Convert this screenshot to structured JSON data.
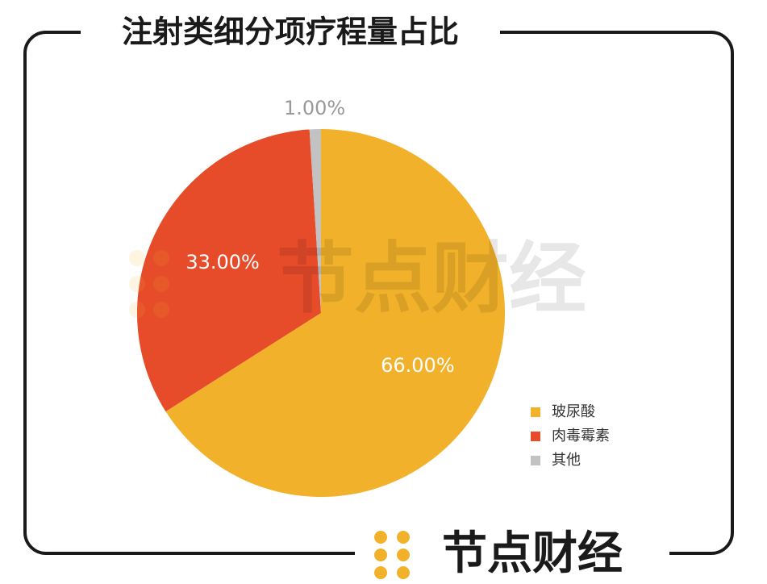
{
  "chart_data": {
    "type": "pie",
    "title": "注射类细分项疗程量占比",
    "categories": [
      "玻尿酸",
      "肉毒霉素",
      "其他"
    ],
    "values": [
      66,
      33,
      1
    ],
    "value_labels": [
      "66.00%",
      "33.00%",
      "1.00%"
    ],
    "colors": [
      "#f1b12b",
      "#e64b2a",
      "#c2c2c2"
    ],
    "legend": "right",
    "watermark": "节点财经",
    "brand": "节点财经"
  }
}
